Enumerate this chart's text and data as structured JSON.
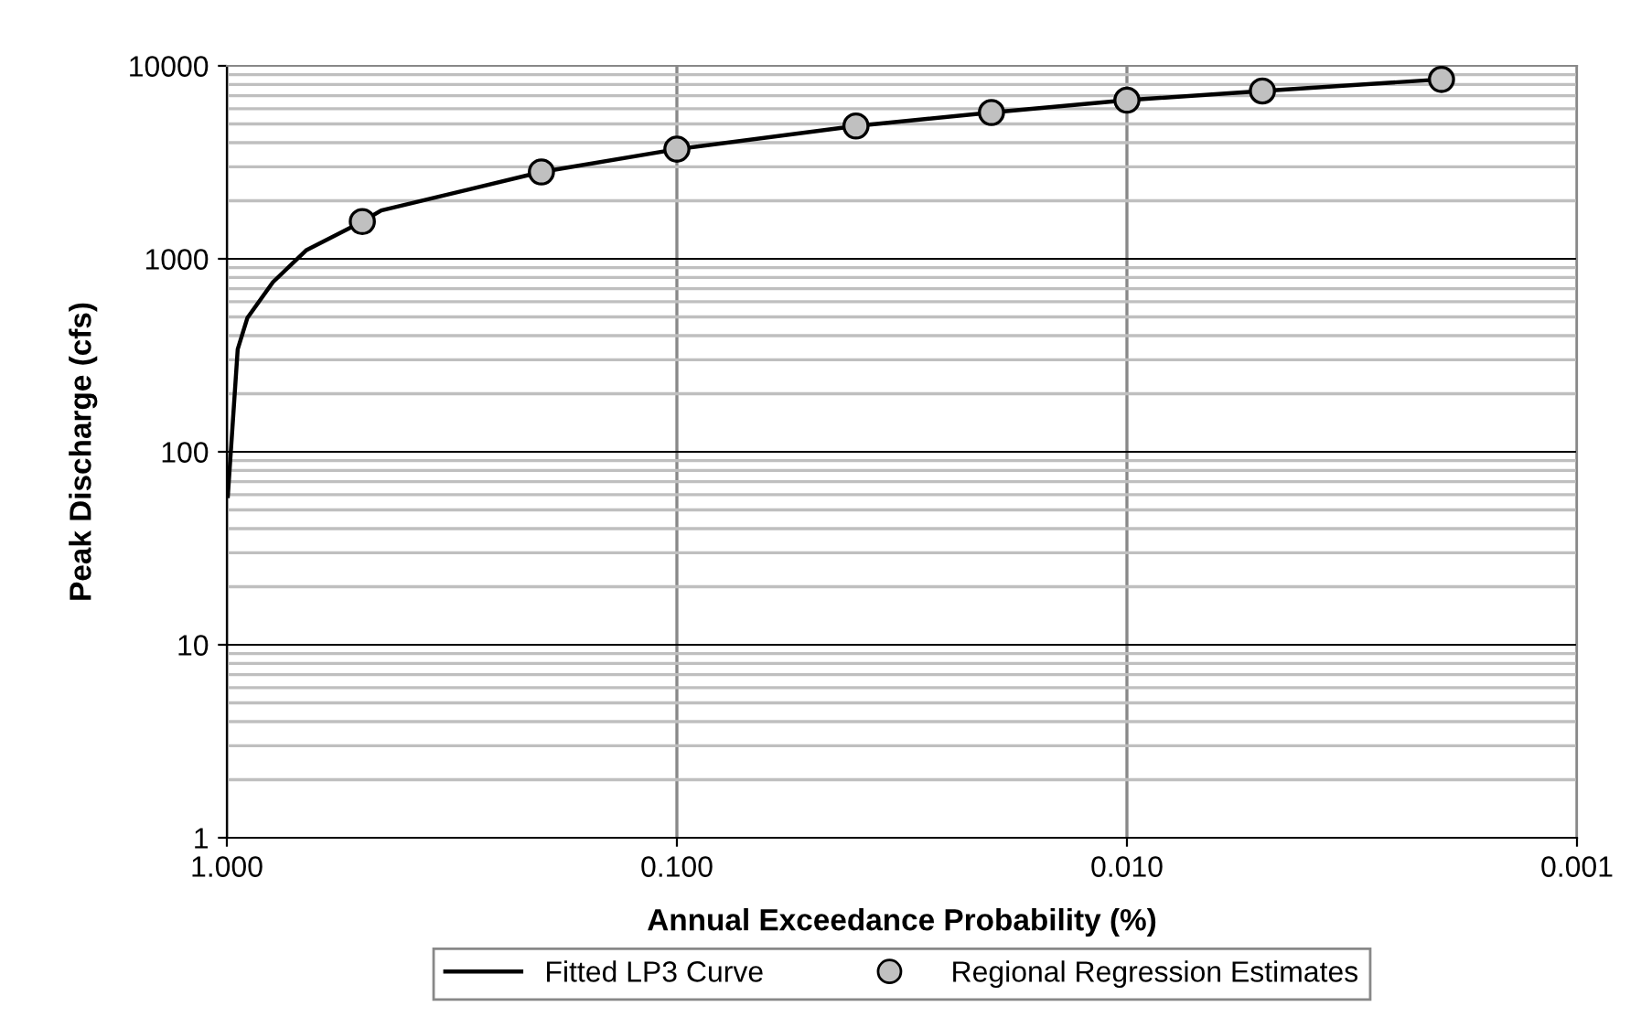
{
  "chart_data": {
    "type": "line",
    "xlabel": "Annual Exceedance Probability (%)",
    "ylabel": "Peak Discharge (cfs)",
    "log": "xy",
    "grid": true,
    "legend": "bottom",
    "xlim": [
      1.0,
      0.001
    ],
    "xticks": [
      {
        "value": 1.0,
        "label": "1.000"
      },
      {
        "value": 0.1,
        "label": "0.100"
      },
      {
        "value": 0.01,
        "label": "0.010"
      },
      {
        "value": 0.001,
        "label": "0.001"
      }
    ],
    "ylim": [
      1,
      10000
    ],
    "yticks": [
      1,
      10,
      100,
      1000,
      10000
    ],
    "series": [
      {
        "name": "Fitted LP3 Curve",
        "color": "#000000",
        "marker": "none",
        "x": [
          0.995,
          0.946,
          0.9,
          0.79,
          0.667,
          0.5,
          0.454,
          0.2,
          0.1,
          0.04,
          0.02,
          0.01,
          0.005,
          0.002
        ],
        "values": [
          59,
          340,
          495,
          757,
          1105,
          1560,
          1780,
          2820,
          3700,
          4880,
          5730,
          6640,
          7410,
          8510
        ]
      },
      {
        "name": "Regional Regression Estimates",
        "type": "scatter",
        "color": "#c0c0c0",
        "marker": "circle",
        "x": [
          0.5,
          0.2,
          0.1,
          0.04,
          0.02,
          0.01,
          0.005,
          0.002
        ],
        "values": [
          1560,
          2820,
          3700,
          4880,
          5730,
          6640,
          7410,
          8510
        ]
      }
    ]
  }
}
